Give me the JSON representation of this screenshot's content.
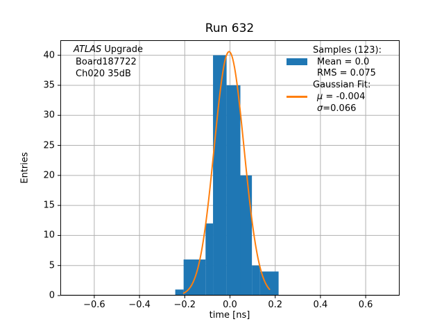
{
  "title": "Run 632",
  "annotation": {
    "line1_italic": "ATLAS",
    "line1_rest": " Upgrade",
    "line2": "Board187722",
    "line3": "Ch020 35dB"
  },
  "legend": {
    "samples_header": "Samples (123):",
    "mean_label": "Mean = 0.0",
    "rms_label": "RMS = 0.075",
    "fit_header": "Gaussian Fit:",
    "mu_symbol": "μ",
    "mu_rest": " = -0.004",
    "sigma_symbol": "σ",
    "sigma_rest": "=0.066"
  },
  "axes": {
    "xlabel": "time [ns]",
    "ylabel": "Entries"
  },
  "chart_data": {
    "type": "bar",
    "subtype": "histogram_with_gaussian_fit",
    "title": "Run 632",
    "xlabel": "time [ns]",
    "ylabel": "Entries",
    "xlim": [
      -0.75,
      0.75
    ],
    "ylim": [
      0,
      42.5
    ],
    "xticks": [
      -0.6,
      -0.4,
      -0.2,
      0.0,
      0.2,
      0.4,
      0.6
    ],
    "xtick_labels": [
      "−0.6",
      "−0.4",
      "−0.2",
      "0.0",
      "0.2",
      "0.4",
      "0.6"
    ],
    "yticks": [
      0,
      5,
      10,
      15,
      20,
      25,
      30,
      35,
      40
    ],
    "ytick_labels": [
      "0",
      "5",
      "10",
      "15",
      "20",
      "25",
      "30",
      "35",
      "40"
    ],
    "grid": true,
    "legend_position": "upper right",
    "bar_color": "#1f77b4",
    "line_color": "#ff7f0e",
    "grid_color": "#b0b0b0",
    "bars": [
      {
        "x0": -0.242,
        "x1": -0.205,
        "count": 1
      },
      {
        "x0": -0.205,
        "x1": -0.108,
        "count": 6
      },
      {
        "x0": -0.108,
        "x1": -0.075,
        "count": 12
      },
      {
        "x0": -0.075,
        "x1": -0.015,
        "count": 40
      },
      {
        "x0": -0.015,
        "x1": 0.046,
        "count": 35
      },
      {
        "x0": 0.046,
        "x1": 0.097,
        "count": 20
      },
      {
        "x0": 0.097,
        "x1": 0.133,
        "count": 5
      },
      {
        "x0": 0.133,
        "x1": 0.215,
        "count": 4
      }
    ],
    "gaussian_fit": {
      "mu": -0.004,
      "sigma": 0.066,
      "amplitude": 40.6,
      "x_range": [
        -0.205,
        0.175
      ]
    },
    "stats": {
      "samples": 123,
      "mean": 0.0,
      "rms": 0.075
    }
  }
}
